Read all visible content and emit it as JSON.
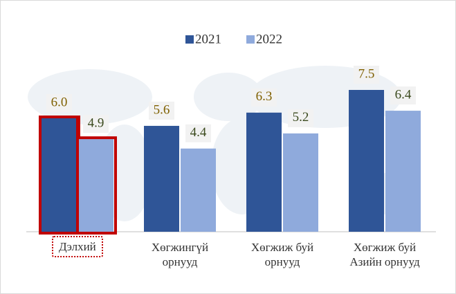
{
  "chart_data": {
    "type": "bar",
    "categories": [
      "Дэлхий",
      "Хөгжингүй орнууд",
      "Хөгжиж буй орнууд",
      "Хөгжиж буй Азийн орнууд"
    ],
    "series": [
      {
        "name": "2021",
        "color": "#2f5597",
        "values": [
          6.0,
          5.6,
          6.3,
          7.5
        ],
        "value_labels": [
          "6.0",
          "5.6",
          "6.3",
          "7.5"
        ]
      },
      {
        "name": "2022",
        "color": "#8faadc",
        "values": [
          4.9,
          4.4,
          5.2,
          6.4
        ],
        "value_labels": [
          "4.9",
          "4.4",
          "5.2",
          "6.4"
        ]
      }
    ],
    "ylim": [
      0,
      9
    ],
    "legend": "top"
  }
}
